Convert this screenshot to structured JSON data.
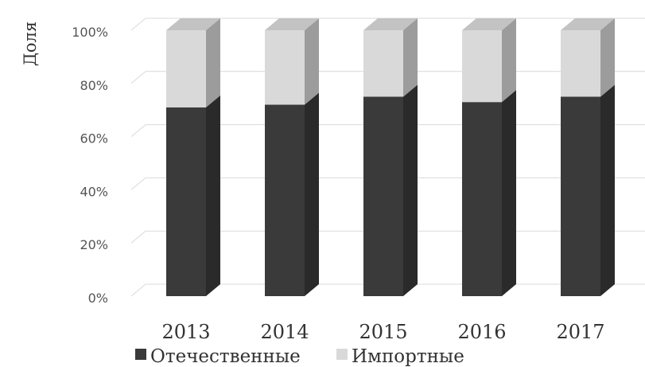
{
  "chart_data": {
    "type": "bar",
    "stacked": true,
    "percent": true,
    "three_d": true,
    "categories": [
      "2013",
      "2014",
      "2015",
      "2016",
      "2017"
    ],
    "series": [
      {
        "name": "Отечественные",
        "values": [
          71,
          72,
          75,
          73,
          75
        ],
        "color": "#3a3a3a"
      },
      {
        "name": "Импортные",
        "values": [
          29,
          28,
          25,
          27,
          25
        ],
        "color": "#d9d9d9"
      }
    ],
    "ylabel": "Доля",
    "xlabel": "",
    "ylim": [
      0,
      100
    ],
    "yticks": [
      "0%",
      "20%",
      "40%",
      "60%",
      "80%",
      "100%"
    ],
    "grid": true,
    "legend_position": "bottom"
  }
}
